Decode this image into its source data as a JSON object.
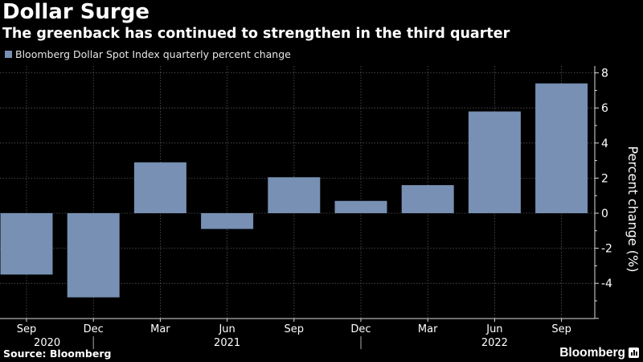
{
  "header": {
    "title": "Dollar Surge",
    "subtitle": "The greenback has continued to strengthen in the third quarter"
  },
  "footer": {
    "source": "Source: Bloomberg",
    "brand": "Bloomberg",
    "brand_icon": "bloomberg-chart-icon"
  },
  "colors": {
    "background": "#000000",
    "bar": "#7790b3",
    "text": "#ffffff",
    "grid": "#555555"
  },
  "chart_data": {
    "type": "bar",
    "title": "Dollar Surge",
    "subtitle": "The greenback has continued to strengthen in the third quarter",
    "legend": [
      "Bloomberg Dollar Spot Index quarterly percent change"
    ],
    "legend_position": "top-left",
    "categories": [
      "Sep 2020",
      "Dec 2020",
      "Mar 2021",
      "Jun 2021",
      "Sep 2021",
      "Dec 2021",
      "Mar 2022",
      "Jun 2022",
      "Sep 2022"
    ],
    "x_tick_labels": [
      "Sep",
      "Dec",
      "Mar",
      "Jun",
      "Sep",
      "Dec",
      "Mar",
      "Jun",
      "Sep"
    ],
    "x_year_labels": [
      {
        "label": "2020",
        "between": [
          0,
          1
        ]
      },
      {
        "label": "2021",
        "at": 3
      },
      {
        "label": "2022",
        "at": 7
      }
    ],
    "year_separators_after": [
      1,
      5
    ],
    "series": [
      {
        "name": "Bloomberg Dollar Spot Index quarterly percent change",
        "values": [
          -3.5,
          -4.8,
          2.9,
          -0.9,
          2.05,
          0.7,
          1.6,
          5.8,
          7.4
        ]
      }
    ],
    "xlabel": "",
    "ylabel": "Percent change (%)",
    "ylim": [
      -6,
      8.5
    ],
    "y_ticks": [
      8,
      6,
      4,
      2,
      0,
      -2,
      -4
    ],
    "y_axis_side": "right",
    "grid": true
  }
}
